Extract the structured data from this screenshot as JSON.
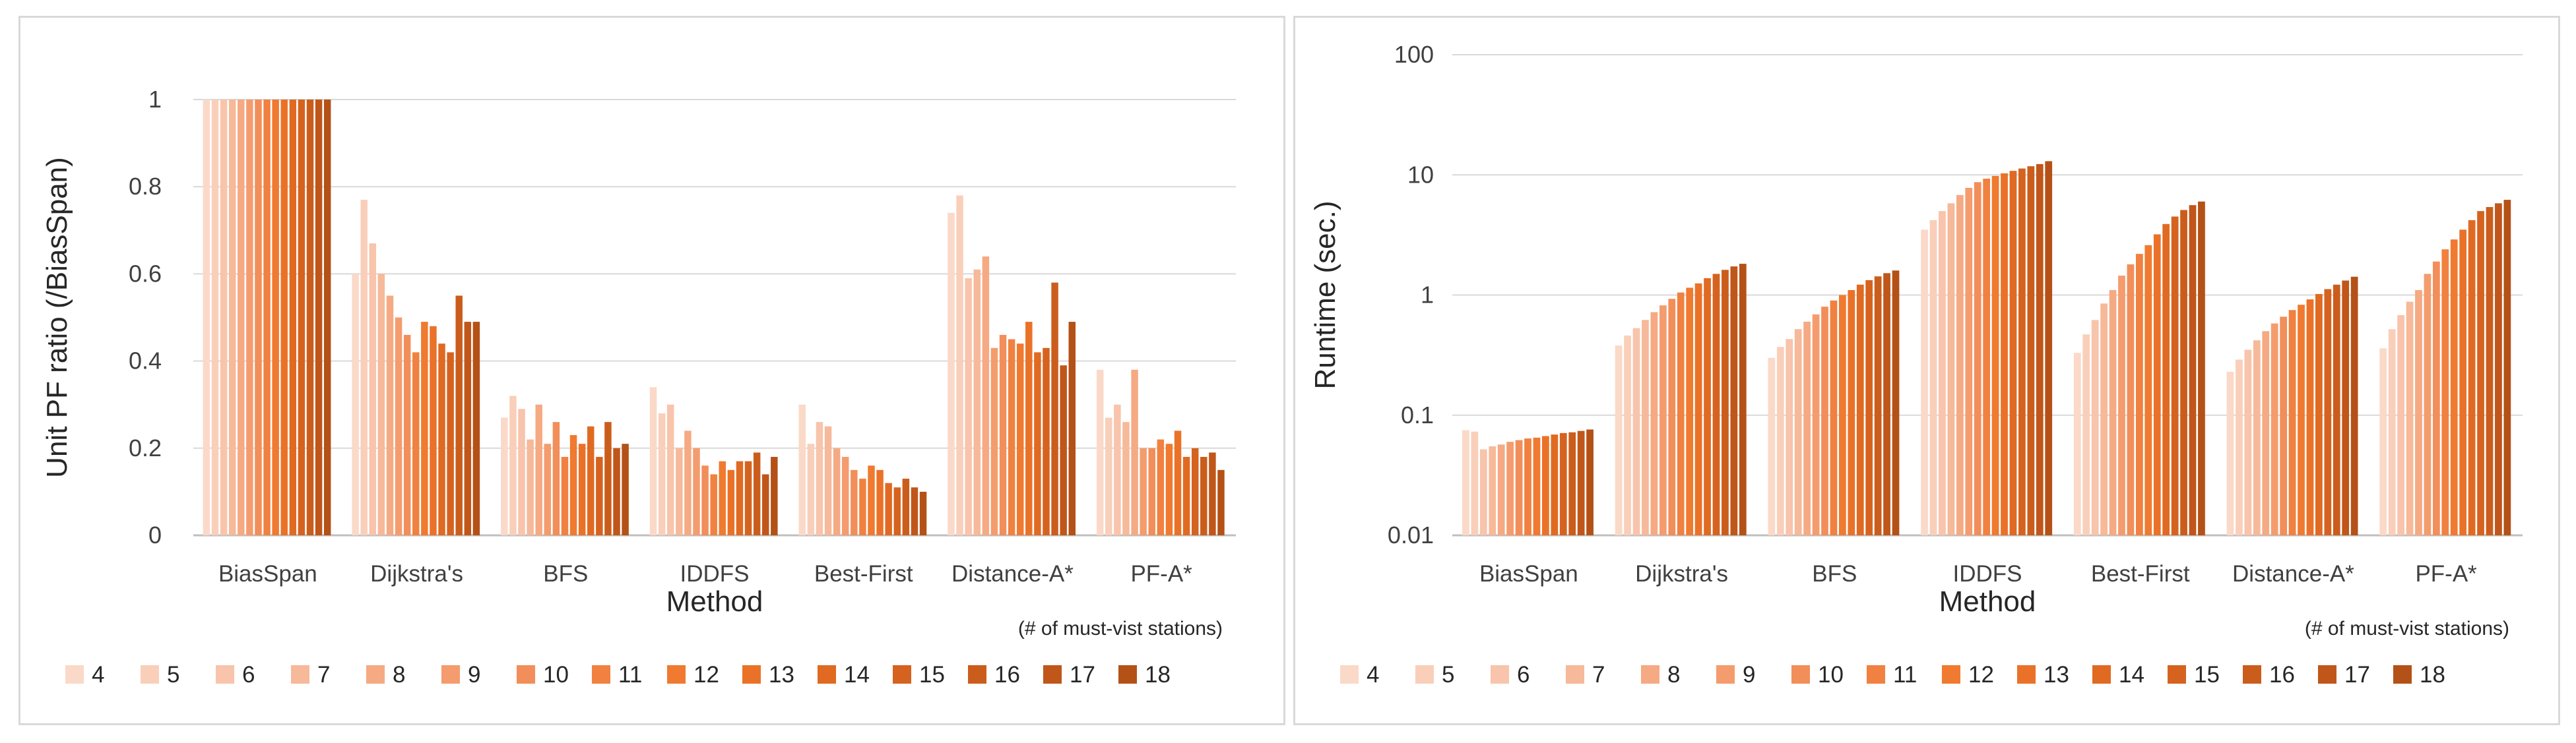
{
  "series_names": [
    "4",
    "5",
    "6",
    "7",
    "8",
    "9",
    "10",
    "11",
    "12",
    "13",
    "14",
    "15",
    "16",
    "17",
    "18"
  ],
  "colors": [
    "#fbd9c8",
    "#f9cfba",
    "#f8c4ab",
    "#f6b99a",
    "#f5aa83",
    "#f49c6e",
    "#f28e5a",
    "#f18140",
    "#ef7a30",
    "#ea7228",
    "#e06a22",
    "#d5631f",
    "#cb5d1c",
    "#c0561a",
    "#b45117"
  ],
  "chart_data": [
    {
      "type": "bar",
      "title": "",
      "xlabel": "Method",
      "ylabel": "Unit PF ratio (/BiasSpan)",
      "note": "(# of must-vist stations)",
      "categories": [
        "BiasSpan",
        "Dijkstra's",
        "BFS",
        "IDDFS",
        "Best-First",
        "Distance-A*",
        "PF-A*"
      ],
      "ylim": [
        0,
        1
      ],
      "yticks": [
        0,
        0.2,
        0.4,
        0.6,
        0.8,
        1
      ],
      "ytick_labels": [
        "0",
        "0.2",
        "0.4",
        "0.6",
        "0.8",
        "1"
      ],
      "scale": "linear",
      "grid": true,
      "legend": "bottom",
      "series": [
        {
          "name": "4",
          "values": [
            1.0,
            0.6,
            0.27,
            0.34,
            0.3,
            0.74,
            0.38
          ]
        },
        {
          "name": "5",
          "values": [
            1.0,
            0.77,
            0.32,
            0.28,
            0.21,
            0.78,
            0.27
          ]
        },
        {
          "name": "6",
          "values": [
            1.0,
            0.67,
            0.29,
            0.3,
            0.26,
            0.59,
            0.3
          ]
        },
        {
          "name": "7",
          "values": [
            1.0,
            0.6,
            0.22,
            0.2,
            0.25,
            0.61,
            0.26
          ]
        },
        {
          "name": "8",
          "values": [
            1.0,
            0.55,
            0.3,
            0.24,
            0.2,
            0.64,
            0.38
          ]
        },
        {
          "name": "9",
          "values": [
            1.0,
            0.5,
            0.21,
            0.2,
            0.18,
            0.43,
            0.2
          ]
        },
        {
          "name": "10",
          "values": [
            1.0,
            0.46,
            0.26,
            0.16,
            0.15,
            0.46,
            0.2
          ]
        },
        {
          "name": "11",
          "values": [
            1.0,
            0.42,
            0.18,
            0.14,
            0.13,
            0.45,
            0.22
          ]
        },
        {
          "name": "12",
          "values": [
            1.0,
            0.49,
            0.23,
            0.17,
            0.16,
            0.44,
            0.21
          ]
        },
        {
          "name": "13",
          "values": [
            1.0,
            0.48,
            0.21,
            0.15,
            0.15,
            0.49,
            0.24
          ]
        },
        {
          "name": "14",
          "values": [
            1.0,
            0.44,
            0.25,
            0.17,
            0.12,
            0.42,
            0.18
          ]
        },
        {
          "name": "15",
          "values": [
            1.0,
            0.42,
            0.18,
            0.17,
            0.11,
            0.43,
            0.2
          ]
        },
        {
          "name": "16",
          "values": [
            1.0,
            0.55,
            0.26,
            0.19,
            0.13,
            0.58,
            0.18
          ]
        },
        {
          "name": "17",
          "values": [
            1.0,
            0.49,
            0.2,
            0.14,
            0.11,
            0.39,
            0.19
          ]
        },
        {
          "name": "18",
          "values": [
            1.0,
            0.49,
            0.21,
            0.18,
            0.1,
            0.49,
            0.15
          ]
        }
      ]
    },
    {
      "type": "bar",
      "title": "",
      "xlabel": "Method",
      "ylabel": "Runtime (sec.)",
      "note": "(# of must-vist stations)",
      "categories": [
        "BiasSpan",
        "Dijkstra's",
        "BFS",
        "IDDFS",
        "Best-First",
        "Distance-A*",
        "PF-A*"
      ],
      "ylim": [
        0.01,
        100
      ],
      "yticks": [
        0.01,
        0.1,
        1,
        10,
        100
      ],
      "ytick_labels": [
        "0.01",
        "0.1",
        "1",
        "10",
        "100"
      ],
      "scale": "log",
      "grid": true,
      "legend": "bottom",
      "series": [
        {
          "name": "4",
          "values": [
            0.075,
            0.38,
            0.3,
            3.5,
            0.33,
            0.23,
            0.36
          ]
        },
        {
          "name": "5",
          "values": [
            0.073,
            0.46,
            0.37,
            4.2,
            0.47,
            0.29,
            0.52
          ]
        },
        {
          "name": "6",
          "values": [
            0.052,
            0.53,
            0.43,
            5.0,
            0.62,
            0.35,
            0.68
          ]
        },
        {
          "name": "7",
          "values": [
            0.055,
            0.62,
            0.52,
            5.8,
            0.85,
            0.42,
            0.88
          ]
        },
        {
          "name": "8",
          "values": [
            0.057,
            0.72,
            0.6,
            6.8,
            1.1,
            0.5,
            1.1
          ]
        },
        {
          "name": "9",
          "values": [
            0.06,
            0.82,
            0.69,
            7.8,
            1.45,
            0.58,
            1.5
          ]
        },
        {
          "name": "10",
          "values": [
            0.062,
            0.93,
            0.8,
            8.7,
            1.8,
            0.66,
            1.9
          ]
        },
        {
          "name": "11",
          "values": [
            0.064,
            1.05,
            0.9,
            9.3,
            2.2,
            0.75,
            2.4
          ]
        },
        {
          "name": "12",
          "values": [
            0.065,
            1.15,
            1.0,
            9.8,
            2.6,
            0.83,
            2.9
          ]
        },
        {
          "name": "13",
          "values": [
            0.067,
            1.25,
            1.1,
            10.3,
            3.2,
            0.92,
            3.5
          ]
        },
        {
          "name": "14",
          "values": [
            0.069,
            1.38,
            1.22,
            10.8,
            3.9,
            1.02,
            4.2
          ]
        },
        {
          "name": "15",
          "values": [
            0.071,
            1.5,
            1.33,
            11.3,
            4.5,
            1.12,
            5.0
          ]
        },
        {
          "name": "16",
          "values": [
            0.072,
            1.62,
            1.43,
            11.8,
            5.1,
            1.22,
            5.4
          ]
        },
        {
          "name": "17",
          "values": [
            0.074,
            1.73,
            1.52,
            12.3,
            5.6,
            1.32,
            5.8
          ]
        },
        {
          "name": "18",
          "values": [
            0.076,
            1.82,
            1.6,
            13.0,
            6.0,
            1.42,
            6.2
          ]
        }
      ]
    }
  ]
}
